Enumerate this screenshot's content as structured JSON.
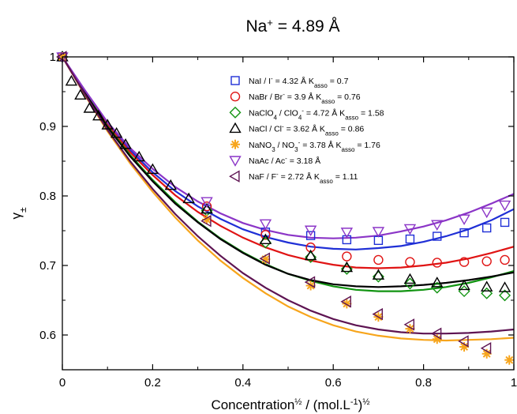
{
  "chart_data": {
    "type": "scatter",
    "title": {
      "main": "Na",
      "sup": "+",
      "rest": " = 4.89 Å"
    },
    "xlabel": {
      "a": "Concentration",
      "a_sup": "½",
      "b": "  /  (mol.L",
      "b_sup1": "-1",
      "b_mid": ")",
      "b_sup2": "½"
    },
    "ylabel": {
      "main": "γ",
      "sub": "±"
    },
    "xlim": [
      0,
      1
    ],
    "ylim": [
      0.55,
      1.0
    ],
    "xticks": [
      0,
      0.2,
      0.4,
      0.6,
      0.8,
      1
    ],
    "xtick_labels": [
      "0",
      "0.2",
      "0.4",
      "0.6",
      "0.8",
      "1"
    ],
    "yticks": [
      0.6,
      0.7,
      0.8,
      0.9,
      1.0
    ],
    "ytick_labels": [
      "0.6",
      "0.7",
      "0.8",
      "0.9",
      "1"
    ],
    "grid": false,
    "legend_position": "top-right",
    "series": [
      {
        "name": "NaI",
        "legend": [
          {
            "t": "NaI   /  I"
          },
          {
            "t": "-",
            "sup": true
          },
          {
            "t": " = 4.32 Å K"
          },
          {
            "t": "asso",
            "sub": true
          },
          {
            "t": " = 0.7"
          }
        ],
        "color": "#1f2fd6",
        "marker": "square",
        "x": [
          0,
          0.32,
          0.45,
          0.55,
          0.63,
          0.7,
          0.77,
          0.83,
          0.89,
          0.94,
          0.98
        ],
        "y": [
          1.0,
          0.781,
          0.748,
          0.743,
          0.737,
          0.736,
          0.738,
          0.742,
          0.747,
          0.754,
          0.762
        ],
        "fit_x": [
          0,
          0.05,
          0.1,
          0.15,
          0.2,
          0.25,
          0.3,
          0.35,
          0.4,
          0.45,
          0.5,
          0.55,
          0.6,
          0.65,
          0.7,
          0.75,
          0.8,
          0.85,
          0.9,
          0.95,
          1.0
        ],
        "fit_y": [
          1.0,
          0.951,
          0.904,
          0.866,
          0.834,
          0.807,
          0.785,
          0.767,
          0.752,
          0.741,
          0.733,
          0.727,
          0.724,
          0.723,
          0.725,
          0.728,
          0.734,
          0.742,
          0.752,
          0.765,
          0.781
        ]
      },
      {
        "name": "NaBr",
        "legend": [
          {
            "t": "NaBr   /  Br"
          },
          {
            "t": "-",
            "sup": true
          },
          {
            "t": " = 3.9 Å K"
          },
          {
            "t": "asso",
            "sub": true
          },
          {
            "t": " = 0.76"
          }
        ],
        "color": "#e01414",
        "marker": "circle",
        "x": [
          0,
          0.32,
          0.45,
          0.55,
          0.63,
          0.7,
          0.77,
          0.83,
          0.89,
          0.94,
          0.98
        ],
        "y": [
          1.0,
          0.785,
          0.744,
          0.726,
          0.713,
          0.708,
          0.705,
          0.704,
          0.705,
          0.706,
          0.708
        ],
        "fit_x": [
          0,
          0.05,
          0.1,
          0.15,
          0.2,
          0.25,
          0.3,
          0.35,
          0.4,
          0.45,
          0.5,
          0.55,
          0.6,
          0.65,
          0.7,
          0.75,
          0.8,
          0.85,
          0.9,
          0.95,
          1.0
        ],
        "fit_y": [
          1.0,
          0.95,
          0.902,
          0.863,
          0.83,
          0.801,
          0.777,
          0.757,
          0.74,
          0.726,
          0.715,
          0.707,
          0.701,
          0.697,
          0.696,
          0.697,
          0.7,
          0.704,
          0.71,
          0.718,
          0.727
        ]
      },
      {
        "name": "NaClO4",
        "legend": [
          {
            "t": "NaClO"
          },
          {
            "t": "4",
            "sub": true
          },
          {
            "t": "  /  ClO"
          },
          {
            "t": "4",
            "sub": true
          },
          {
            "t": "-",
            "sup": true
          },
          {
            "t": " = 4.72 Å K"
          },
          {
            "t": "asso",
            "sub": true
          },
          {
            "t": " = 1.58"
          }
        ],
        "color": "#119411",
        "marker": "diamond",
        "x": [
          0,
          0.32,
          0.45,
          0.55,
          0.63,
          0.7,
          0.77,
          0.83,
          0.89,
          0.94,
          0.98
        ],
        "y": [
          1.0,
          0.779,
          0.733,
          0.712,
          0.695,
          0.684,
          0.674,
          0.668,
          0.663,
          0.66,
          0.657
        ],
        "fit_x": [
          0,
          0.05,
          0.1,
          0.15,
          0.2,
          0.25,
          0.3,
          0.35,
          0.4,
          0.45,
          0.5,
          0.55,
          0.6,
          0.65,
          0.7,
          0.75,
          0.8,
          0.85,
          0.9,
          0.95,
          1.0
        ],
        "fit_y": [
          1.0,
          0.949,
          0.9,
          0.859,
          0.823,
          0.791,
          0.763,
          0.739,
          0.719,
          0.702,
          0.688,
          0.678,
          0.67,
          0.665,
          0.663,
          0.663,
          0.665,
          0.669,
          0.675,
          0.683,
          0.692
        ]
      },
      {
        "name": "NaCl",
        "legend": [
          {
            "t": "NaCl   /  Cl"
          },
          {
            "t": "-",
            "sup": true
          },
          {
            "t": " = 3.62 Å K"
          },
          {
            "t": "asso",
            "sub": true
          },
          {
            "t": " = 0.86"
          }
        ],
        "color": "#000000",
        "marker": "triangle-up",
        "x": [
          0,
          0.02,
          0.04,
          0.06,
          0.08,
          0.1,
          0.12,
          0.14,
          0.17,
          0.2,
          0.24,
          0.28,
          0.32,
          0.45,
          0.55,
          0.63,
          0.7,
          0.77,
          0.83,
          0.89,
          0.94,
          0.98
        ],
        "y": [
          1.0,
          0.965,
          0.945,
          0.926,
          0.915,
          0.902,
          0.89,
          0.874,
          0.856,
          0.838,
          0.815,
          0.796,
          0.781,
          0.737,
          0.714,
          0.697,
          0.686,
          0.68,
          0.675,
          0.671,
          0.669,
          0.668
        ],
        "fit_x": [
          0,
          0.05,
          0.1,
          0.15,
          0.2,
          0.25,
          0.3,
          0.35,
          0.4,
          0.45,
          0.5,
          0.55,
          0.6,
          0.65,
          0.7,
          0.75,
          0.8,
          0.85,
          0.9,
          0.95,
          1.0
        ],
        "fit_y": [
          1.0,
          0.948,
          0.899,
          0.857,
          0.821,
          0.789,
          0.762,
          0.738,
          0.718,
          0.701,
          0.688,
          0.679,
          0.673,
          0.67,
          0.669,
          0.67,
          0.672,
          0.675,
          0.679,
          0.684,
          0.69
        ]
      },
      {
        "name": "NaNO3",
        "legend": [
          {
            "t": "NaNO"
          },
          {
            "t": "3",
            "sub": true
          },
          {
            "t": "   /  NO"
          },
          {
            "t": "3",
            "sub": true
          },
          {
            "t": "-",
            "sup": true
          },
          {
            "t": " = 3.78 Å K"
          },
          {
            "t": "asso",
            "sub": true
          },
          {
            "t": " = 1.76"
          }
        ],
        "color": "#f7a51c",
        "marker": "asterisk",
        "x": [
          0,
          0.32,
          0.45,
          0.55,
          0.63,
          0.7,
          0.77,
          0.83,
          0.89,
          0.94,
          0.99
        ],
        "y": [
          1.0,
          0.766,
          0.709,
          0.671,
          0.645,
          0.626,
          0.609,
          0.594,
          0.583,
          0.573,
          0.564
        ],
        "fit_x": [
          0,
          0.05,
          0.1,
          0.15,
          0.2,
          0.25,
          0.3,
          0.35,
          0.4,
          0.45,
          0.5,
          0.55,
          0.6,
          0.65,
          0.7,
          0.75,
          0.8,
          0.85,
          0.9,
          0.95,
          1.0
        ],
        "fit_y": [
          1.0,
          0.945,
          0.893,
          0.847,
          0.806,
          0.769,
          0.736,
          0.707,
          0.682,
          0.66,
          0.641,
          0.626,
          0.614,
          0.605,
          0.599,
          0.595,
          0.593,
          0.592,
          0.593,
          0.594,
          0.596
        ]
      },
      {
        "name": "NaAc",
        "legend": [
          {
            "t": "NaAc   /  Ac"
          },
          {
            "t": "-",
            "sup": true
          },
          {
            "t": " = 3.18 Å"
          }
        ],
        "color": "#8b35c7",
        "marker": "triangle-down",
        "x": [
          0,
          0.32,
          0.45,
          0.55,
          0.63,
          0.7,
          0.77,
          0.83,
          0.89,
          0.94,
          0.98
        ],
        "y": [
          1.0,
          0.792,
          0.76,
          0.751,
          0.748,
          0.749,
          0.753,
          0.759,
          0.767,
          0.777,
          0.787
        ],
        "fit_x": [
          0,
          0.05,
          0.1,
          0.15,
          0.2,
          0.25,
          0.3,
          0.35,
          0.4,
          0.45,
          0.5,
          0.55,
          0.6,
          0.65,
          0.7,
          0.75,
          0.8,
          0.85,
          0.9,
          0.95,
          1.0
        ],
        "fit_y": [
          1.0,
          0.952,
          0.906,
          0.869,
          0.839,
          0.813,
          0.792,
          0.775,
          0.761,
          0.751,
          0.744,
          0.74,
          0.739,
          0.74,
          0.743,
          0.749,
          0.756,
          0.765,
          0.776,
          0.789,
          0.803
        ]
      },
      {
        "name": "NaF",
        "legend": [
          {
            "t": "NaF   /  F"
          },
          {
            "t": "-",
            "sup": true
          },
          {
            "t": " = 2.72 Å K"
          },
          {
            "t": "asso",
            "sub": true
          },
          {
            "t": " = 1.11"
          }
        ],
        "color": "#5e1452",
        "marker": "triangle-left",
        "x": [
          0,
          0.32,
          0.45,
          0.55,
          0.63,
          0.7,
          0.77,
          0.83,
          0.89,
          0.94
        ],
        "y": [
          1.0,
          0.764,
          0.71,
          0.676,
          0.648,
          0.63,
          0.615,
          0.602,
          0.591,
          0.581
        ],
        "fit_x": [
          0,
          0.05,
          0.1,
          0.15,
          0.2,
          0.25,
          0.3,
          0.35,
          0.4,
          0.45,
          0.5,
          0.55,
          0.6,
          0.65,
          0.7,
          0.75,
          0.8,
          0.85,
          0.9,
          0.95,
          1.0
        ],
        "fit_y": [
          1.0,
          0.946,
          0.895,
          0.85,
          0.81,
          0.774,
          0.742,
          0.714,
          0.689,
          0.668,
          0.65,
          0.635,
          0.623,
          0.614,
          0.608,
          0.604,
          0.602,
          0.602,
          0.603,
          0.605,
          0.608
        ]
      }
    ]
  }
}
